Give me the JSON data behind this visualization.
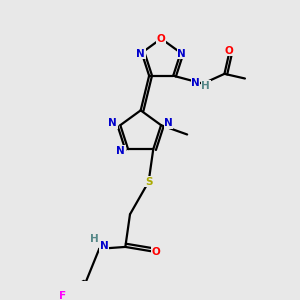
{
  "background_color": "#e8e8e8",
  "C": "#000000",
  "N": "#0000cc",
  "O": "#ff0000",
  "S": "#aaaa00",
  "F": "#ff00ff",
  "H": "#558888",
  "figsize": [
    3.0,
    3.0
  ],
  "dpi": 100
}
